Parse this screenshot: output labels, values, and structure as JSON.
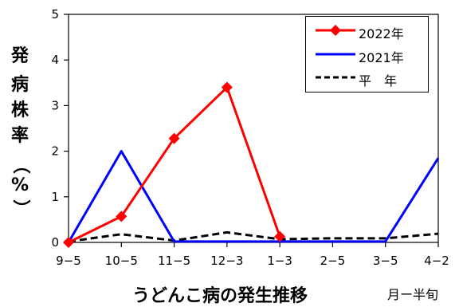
{
  "chart_data": {
    "type": "line",
    "title": "",
    "ylabel": "発病株率（%）",
    "ylabel_chars": [
      "発",
      "病",
      "株",
      "率",
      "（",
      "%",
      "）"
    ],
    "xlabel": "うどんこ病の発生推移",
    "xunit": "月ー半旬",
    "categories": [
      "9-5",
      "10-5",
      "11-5",
      "12-3",
      "1-3",
      "2-5",
      "3-5",
      "4-2"
    ],
    "ylim": [
      0,
      5
    ],
    "yticks": [
      0,
      1,
      2,
      3,
      4,
      5
    ],
    "grid": false,
    "legend_position": "top-right",
    "series": [
      {
        "name": "2022年",
        "color": "#ff0000",
        "style": "solid",
        "marker": "diamond",
        "values": [
          0,
          0.57,
          2.28,
          3.4,
          0.13,
          null,
          null,
          null
        ]
      },
      {
        "name": "2021年",
        "color": "#0000ff",
        "style": "solid",
        "marker": "none",
        "values": [
          0,
          2.0,
          0.02,
          0.02,
          0.02,
          0.02,
          0.02,
          1.85
        ]
      },
      {
        "name": "平　年",
        "color": "#000000",
        "style": "dashed",
        "marker": "none",
        "values": [
          0.02,
          0.18,
          0.04,
          0.22,
          0.07,
          0.09,
          0.09,
          0.19
        ]
      }
    ]
  }
}
